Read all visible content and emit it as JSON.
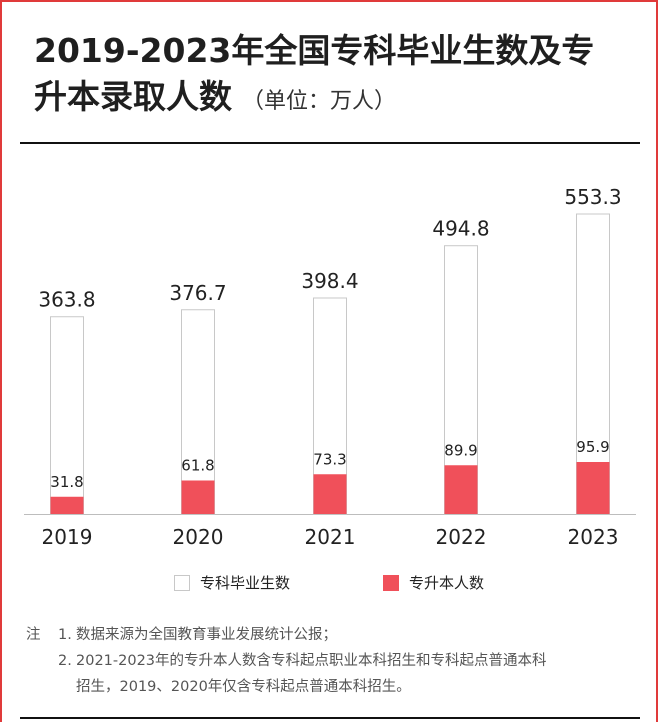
{
  "title": {
    "line1": "2019-2023年全国专科毕业生数及专",
    "line2": "升本录取人数",
    "unit": "（单位：万人）"
  },
  "colors": {
    "graduates_fill": "#ffffff",
    "graduates_stroke": "#c8c8c8",
    "upgrade_fill": "#f0505a",
    "frame_accent": "#e03a3a"
  },
  "chart_data": {
    "type": "bar",
    "categories": [
      "2019",
      "2020",
      "2021",
      "2022",
      "2023"
    ],
    "series": [
      {
        "name": "专科毕业生数",
        "values": [
          363.8,
          376.7,
          398.4,
          494.8,
          553.3
        ]
      },
      {
        "name": "专升本人数",
        "values": [
          31.8,
          61.8,
          73.3,
          89.9,
          95.9
        ]
      }
    ],
    "ylim": [
      0,
      553.3
    ],
    "grid": false,
    "legend_position": "bottom"
  },
  "notes": {
    "prefix": "注",
    "item1_num": "1.",
    "item1": "数据来源为全国教育事业发展统计公报；",
    "item2_num": "2.",
    "item2_line1": "2021-2023年的专升本人数含专科起点职业本科招生和专科起点普通本科",
    "item2_line2": "招生，2019、2020年仅含专科起点普通本科招生。"
  }
}
